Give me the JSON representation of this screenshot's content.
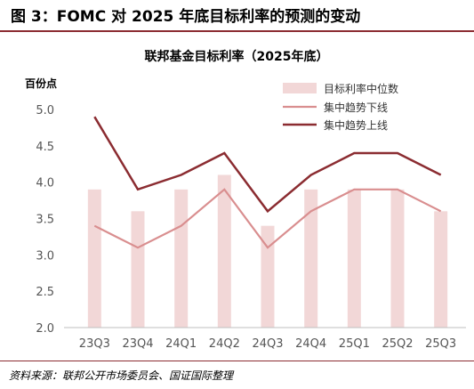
{
  "figure_title": "图 3：FOMC 对 2025 年底目标利率的预测的变动",
  "source": "资料来源：联邦公开市场委员会、国证国际整理",
  "colors": {
    "bar": "#f2d7d7",
    "lower": "#d98e8f",
    "upper": "#8b2c31",
    "axis": "#bfbfbf",
    "rule": "#8c2c32"
  },
  "chart_data": {
    "type": "bar",
    "title": "联邦基金目标利率（2025年底）",
    "ylabel": "百份点",
    "xlabel": "",
    "ylim": [
      2.0,
      5.0
    ],
    "yticks": [
      "2.0",
      "2.5",
      "3.0",
      "3.5",
      "4.0",
      "4.5",
      "5.0"
    ],
    "grid": false,
    "legend_position": "top-right",
    "categories": [
      "23Q3",
      "23Q4",
      "24Q1",
      "24Q2",
      "24Q3",
      "24Q4",
      "25Q1",
      "25Q2",
      "25Q3"
    ],
    "series": [
      {
        "name": "目标利率中位数",
        "type": "bar",
        "values": [
          3.9,
          3.6,
          3.9,
          4.1,
          3.4,
          3.9,
          3.9,
          3.9,
          3.6
        ]
      },
      {
        "name": "集中趋势下线",
        "type": "line",
        "values": [
          3.4,
          3.1,
          3.4,
          3.9,
          3.1,
          3.6,
          3.9,
          3.9,
          3.6
        ]
      },
      {
        "name": "集中趋势上线",
        "type": "line",
        "values": [
          4.9,
          3.9,
          4.1,
          4.4,
          3.6,
          4.1,
          4.4,
          4.4,
          4.1
        ]
      }
    ]
  }
}
